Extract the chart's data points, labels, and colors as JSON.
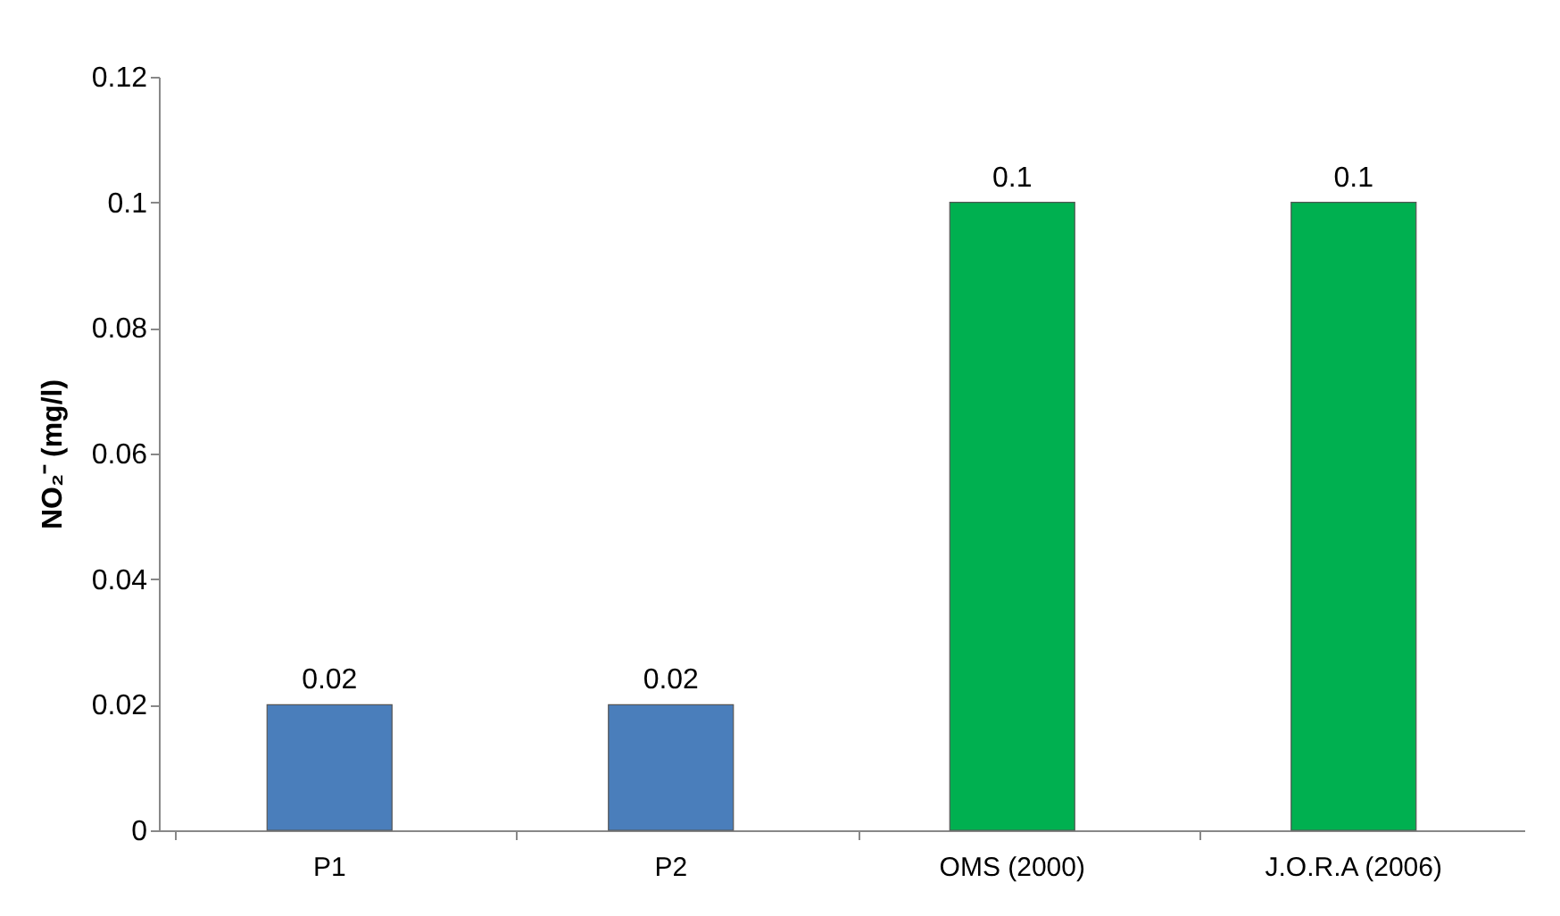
{
  "chart_data": {
    "type": "bar",
    "ylabel": "NO₂⁻ (mg/l)",
    "categories": [
      "P1",
      "P2",
      "OMS (2000)",
      "J.O.R.A (2006)"
    ],
    "values": [
      0.02,
      0.02,
      0.1,
      0.1
    ],
    "colors": [
      "#4a7ebb",
      "#4a7ebb",
      "#00b050",
      "#00b050"
    ],
    "ylim": [
      0,
      0.12
    ],
    "yticks": [
      0,
      0.02,
      0.04,
      0.06,
      0.08,
      0.1,
      0.12
    ],
    "data_labels": true,
    "grid": false
  }
}
